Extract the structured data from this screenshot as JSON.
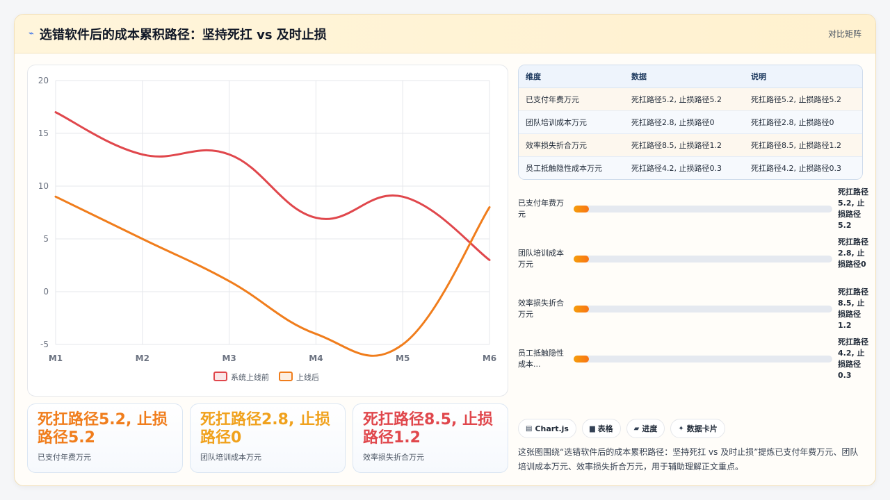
{
  "header": {
    "title": "选错软件后的成本累积路径：坚持死扛 vs 及时止损",
    "right_label": "对比矩阵",
    "flag_icon": "blue-ribbon-icon"
  },
  "chart_data": {
    "type": "line",
    "x": [
      "M1",
      "M2",
      "M3",
      "M4",
      "M5",
      "M6"
    ],
    "ylim": [
      -5,
      20
    ],
    "yticks": [
      20,
      15,
      10,
      5,
      0,
      -5
    ],
    "grid": true,
    "legend_position": "bottom",
    "series": [
      {
        "name": "系统上线前",
        "color": "#e0474c",
        "values": [
          17,
          13,
          13,
          7,
          9,
          3
        ]
      },
      {
        "name": "上线后",
        "color": "#f07d1c",
        "values": [
          9,
          5,
          1,
          -4,
          -5,
          8
        ]
      }
    ]
  },
  "kpis": [
    {
      "value": "死扛路径5.2, 止损路径5.2",
      "label": "已支付年费万元",
      "color": "#f07d1c"
    },
    {
      "value": "死扛路径2.8, 止损路径0",
      "label": "团队培训成本万元",
      "color": "#f0a11c"
    },
    {
      "value": "死扛路径8.5, 止损路径1.2",
      "label": "效率损失折合万元",
      "color": "#e0474c"
    }
  ],
  "table": {
    "headers": [
      "维度",
      "数据",
      "说明"
    ],
    "rows": [
      [
        "已支付年费万元",
        "死扛路径5.2, 止损路径5.2",
        "死扛路径5.2, 止损路径5.2"
      ],
      [
        "团队培训成本万元",
        "死扛路径2.8, 止损路径0",
        "死扛路径2.8, 止损路径0"
      ],
      [
        "效率损失折合万元",
        "死扛路径8.5, 止损路径1.2",
        "死扛路径8.5, 止损路径1.2"
      ],
      [
        "员工抵触隐性成本万元",
        "死扛路径4.2, 止损路径0.3",
        "死扛路径4.2, 止损路径0.3"
      ]
    ]
  },
  "progress": [
    {
      "label": "已支付年费万元",
      "value": "死扛路径5.2, 止损路径5.2",
      "fraction": 0.06
    },
    {
      "label": "团队培训成本万元",
      "value": "死扛路径2.8, 止损路径0",
      "fraction": 0.06
    },
    {
      "label": "效率损失折合万元",
      "value": "死扛路径8.5, 止损路径1.2",
      "fraction": 0.06
    },
    {
      "label": "员工抵触隐性成本...",
      "value": "死扛路径4.2, 止损路径0.3",
      "fraction": 0.06
    }
  ],
  "chips": [
    {
      "icon": "chart-icon",
      "label": "Chart.js"
    },
    {
      "icon": "table-icon",
      "label": "表格"
    },
    {
      "icon": "progress-icon",
      "label": "进度"
    },
    {
      "icon": "sparkle-icon",
      "label": "数据卡片"
    }
  ],
  "description": "这张图围绕“选错软件后的成本累积路径：坚持死扛 vs 及时止损”提炼已支付年费万元、团队培训成本万元、效率损失折合万元，用于辅助理解正文重点。"
}
